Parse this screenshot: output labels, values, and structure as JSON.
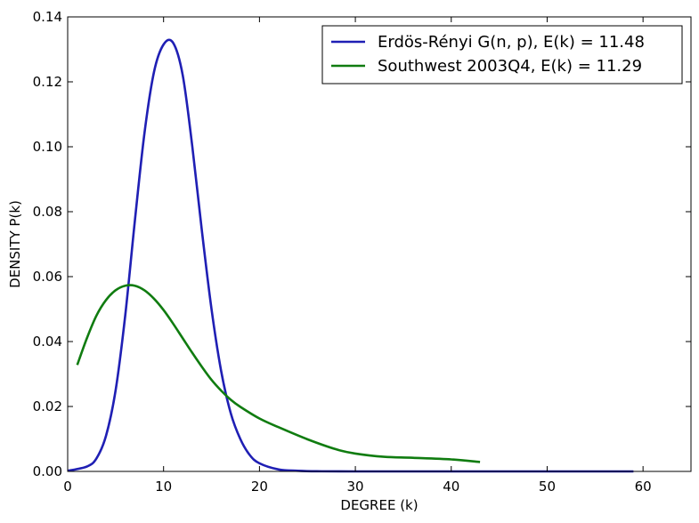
{
  "chart_data": {
    "type": "line",
    "xlabel": "DEGREE (k)",
    "ylabel": "DENSITY P(k)",
    "xlim": [
      0,
      65
    ],
    "ylim": [
      0,
      0.14
    ],
    "x_ticks": [
      0,
      10,
      20,
      30,
      40,
      50,
      60
    ],
    "x_tick_labels": [
      "0",
      "10",
      "20",
      "30",
      "40",
      "50",
      "60"
    ],
    "y_ticks": [
      0,
      0.02,
      0.04,
      0.06,
      0.08,
      0.1,
      0.12,
      0.14
    ],
    "y_tick_labels": [
      "0.00",
      "0.02",
      "0.04",
      "0.06",
      "0.08",
      "0.10",
      "0.12",
      "0.14"
    ],
    "grid": false,
    "legend_position": "top-right",
    "series": [
      {
        "name": "Erdös-Rényi G(n, p), E(k) = 11.48",
        "color": "#1f1fb4",
        "x": [
          0,
          2,
          3,
          4,
          5,
          6,
          7,
          8,
          9,
          10,
          11,
          12,
          13,
          14,
          15,
          16,
          17,
          18,
          19,
          20,
          22,
          24,
          26,
          30,
          40,
          50,
          59
        ],
        "y": [
          0.0002,
          0.0015,
          0.004,
          0.011,
          0.025,
          0.048,
          0.077,
          0.104,
          0.123,
          0.1315,
          0.132,
          0.122,
          0.1,
          0.074,
          0.05,
          0.031,
          0.018,
          0.01,
          0.005,
          0.0025,
          0.0006,
          0.0002,
          5e-05,
          0,
          0,
          0,
          0
        ]
      },
      {
        "name": "Southwest 2003Q4, E(k) = 11.29",
        "color": "#107c10",
        "x": [
          1,
          2,
          3,
          4,
          5,
          6,
          7,
          8,
          9,
          10,
          11,
          12,
          13,
          14,
          15,
          16,
          17,
          18,
          20,
          22,
          25,
          28,
          30,
          33,
          36,
          40,
          43
        ],
        "y": [
          0.0328,
          0.041,
          0.048,
          0.0528,
          0.0558,
          0.0572,
          0.0572,
          0.0558,
          0.0532,
          0.0497,
          0.0455,
          0.041,
          0.0365,
          0.0322,
          0.0282,
          0.0249,
          0.0221,
          0.0199,
          0.0163,
          0.0136,
          0.0099,
          0.0068,
          0.0055,
          0.0045,
          0.0042,
          0.0037,
          0.0029
        ]
      }
    ]
  }
}
